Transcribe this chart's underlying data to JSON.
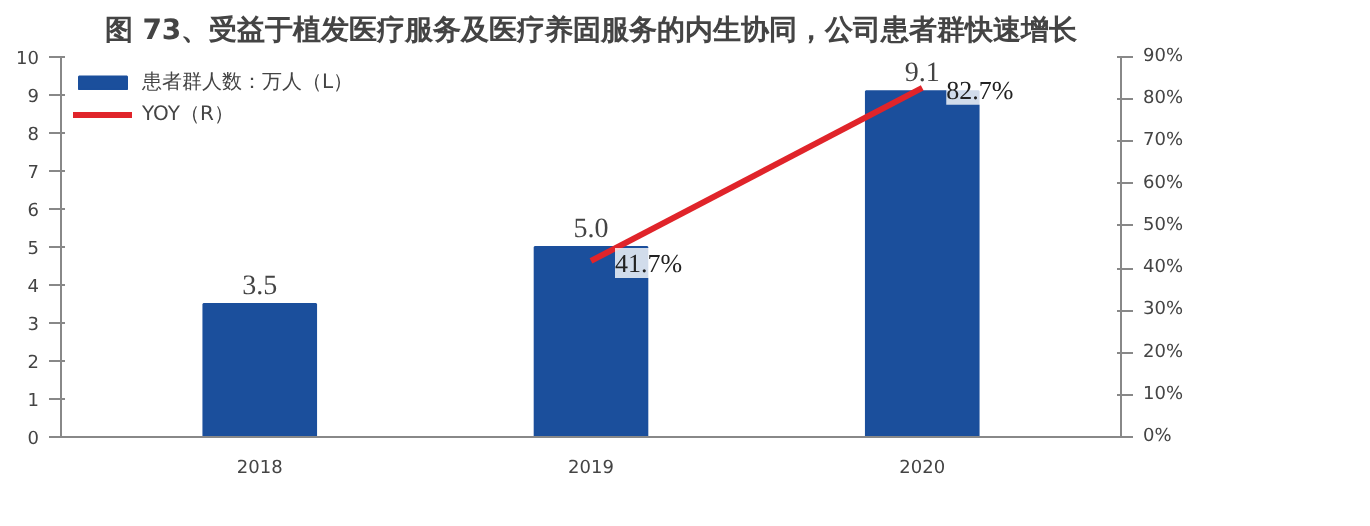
{
  "chart_data": {
    "type": "bar",
    "title": "图 73、受益于植发医疗服务及医疗养固服务的内生协同，公司患者群快速增长",
    "categories": [
      "2018",
      "2019",
      "2020"
    ],
    "series": [
      {
        "name": "患者群人数：万人（L）",
        "color": "#1b4f9c",
        "values": [
          3.5,
          5.0,
          9.1
        ],
        "value_labels": [
          "3.5",
          "5.0",
          "9.1"
        ]
      },
      {
        "name": "YOY（R）",
        "type": "line",
        "axis": "y2",
        "color": "#e0242a",
        "values": [
          null,
          41.7,
          82.7
        ],
        "value_labels": [
          null,
          "41.7%",
          "82.7%"
        ]
      }
    ],
    "ylim": [
      0,
      10
    ],
    "yticks": [
      0,
      1,
      2,
      3,
      4,
      5,
      6,
      7,
      8,
      9,
      10
    ],
    "y2lim": [
      0,
      90
    ],
    "y2ticks": [
      {
        "value": 0,
        "label": "0%"
      },
      {
        "value": 10,
        "label": "10%"
      },
      {
        "value": 20,
        "label": "20%"
      },
      {
        "value": 30,
        "label": "30%"
      },
      {
        "value": 40,
        "label": "40%"
      },
      {
        "value": 50,
        "label": "50%"
      },
      {
        "value": 60,
        "label": "60%"
      },
      {
        "value": 70,
        "label": "70%"
      },
      {
        "value": 80,
        "label": "80%"
      },
      {
        "value": 90,
        "label": "90%"
      }
    ],
    "grid": false,
    "legend": "top left"
  }
}
